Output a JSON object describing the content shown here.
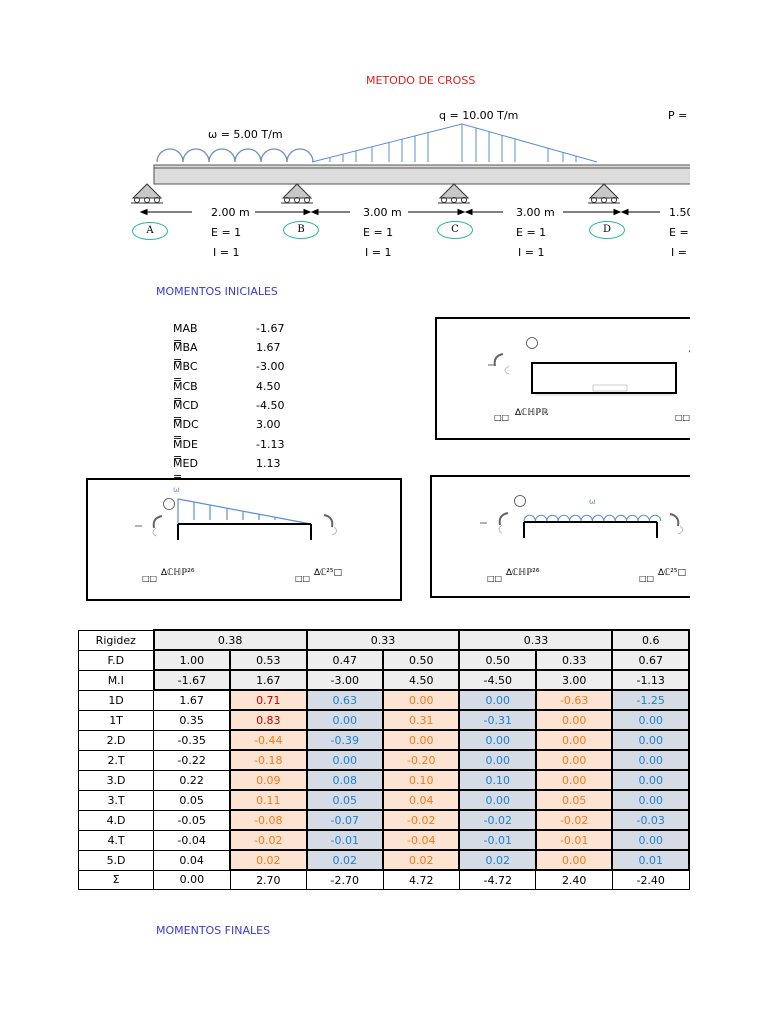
{
  "title": "METODO DE CROSS",
  "loads": {
    "omega": "ω = 5.00 T/m",
    "q": "q = 10.00 T/m",
    "p": "P ="
  },
  "spans": [
    {
      "length": "2.00 m",
      "e": "E = 1",
      "i": "I = 1"
    },
    {
      "length": "3.00 m",
      "e": "E = 1",
      "i": "I = 1"
    },
    {
      "length": "3.00 m",
      "e": "E = 1",
      "i": "I = 1"
    },
    {
      "length": "1.50",
      "e": "E =",
      "i": "I ="
    }
  ],
  "supports": [
    "A",
    "B",
    "C",
    "D"
  ],
  "momentos_iniciales": {
    "heading": "MOMENTOS INICIALES",
    "rows": [
      {
        "label": "MAB =",
        "value": "-1.67"
      },
      {
        "label": "MBA =",
        "value": "1.67"
      },
      {
        "label": "MBC =",
        "value": "-3.00"
      },
      {
        "label": "MCB =",
        "value": "4.50"
      },
      {
        "label": "MCD =",
        "value": "-4.50"
      },
      {
        "label": "MDC =",
        "value": "3.00"
      },
      {
        "label": "MDE =",
        "value": "-1.13"
      },
      {
        "label": "MED =",
        "value": "1.13"
      }
    ]
  },
  "panels": {
    "p1": {
      "w": "",
      "left_sym": "□□",
      "mid": "∆ℂℍℙℝ",
      "right_sym": "□□"
    },
    "p2": {
      "w": "ω",
      "left_sym": "□□",
      "mid": "∆ℂℍℙ²⁶",
      "right_sym": "□□",
      "right_mid": "∆ℂ²⁵□"
    },
    "p3": {
      "w": "ω",
      "left_sym": "□□",
      "mid": "∆ℂℍℙ²⁶",
      "right_sym": "□□",
      "right_mid": "∆ℂ²⁵□"
    }
  },
  "table": {
    "rigidez_label": "Rigidez",
    "rigidez": [
      "0.38",
      "0.33",
      "0.33",
      "0.6"
    ],
    "rows": [
      {
        "label": "F.D",
        "values": [
          "1.00",
          "0.53",
          "0.47",
          "0.50",
          "0.50",
          "0.33",
          "0.67"
        ]
      },
      {
        "label": "M.I",
        "values": [
          "-1.67",
          "1.67",
          "-3.00",
          "4.50",
          "-4.50",
          "3.00",
          "-1.13"
        ]
      },
      {
        "label": "1D",
        "values": [
          "1.67",
          "0.71",
          "0.63",
          "0.00",
          "0.00",
          "-0.63",
          "-1.25"
        ]
      },
      {
        "label": "1T",
        "values": [
          "0.35",
          "0.83",
          "0.00",
          "0.31",
          "-0.31",
          "0.00",
          "0.00"
        ]
      },
      {
        "label": "2.D",
        "values": [
          "-0.35",
          "-0.44",
          "-0.39",
          "0.00",
          "0.00",
          "0.00",
          "0.00"
        ]
      },
      {
        "label": "2.T",
        "values": [
          "-0.22",
          "-0.18",
          "0.00",
          "-0.20",
          "0.00",
          "0.00",
          "0.00"
        ]
      },
      {
        "label": "3.D",
        "values": [
          "0.22",
          "0.09",
          "0.08",
          "0.10",
          "0.10",
          "0.00",
          "0.00"
        ]
      },
      {
        "label": "3.T",
        "values": [
          "0.05",
          "0.11",
          "0.05",
          "0.04",
          "0.00",
          "0.05",
          "0.00"
        ]
      },
      {
        "label": "4.D",
        "values": [
          "-0.05",
          "-0.08",
          "-0.07",
          "-0.02",
          "-0.02",
          "-0.02",
          "-0.03"
        ]
      },
      {
        "label": "4.T",
        "values": [
          "-0.04",
          "-0.02",
          "-0.01",
          "-0.04",
          "-0.01",
          "-0.01",
          "0.00"
        ]
      },
      {
        "label": "5.D",
        "values": [
          "0.04",
          "0.02",
          "0.02",
          "0.02",
          "0.02",
          "0.00",
          "0.01"
        ]
      },
      {
        "label": "Σ",
        "values": [
          "0.00",
          "2.70",
          "-2.70",
          "4.72",
          "-4.72",
          "2.40",
          "-2.40"
        ]
      }
    ]
  },
  "momentos_finales": "MOMENTOS FINALES"
}
